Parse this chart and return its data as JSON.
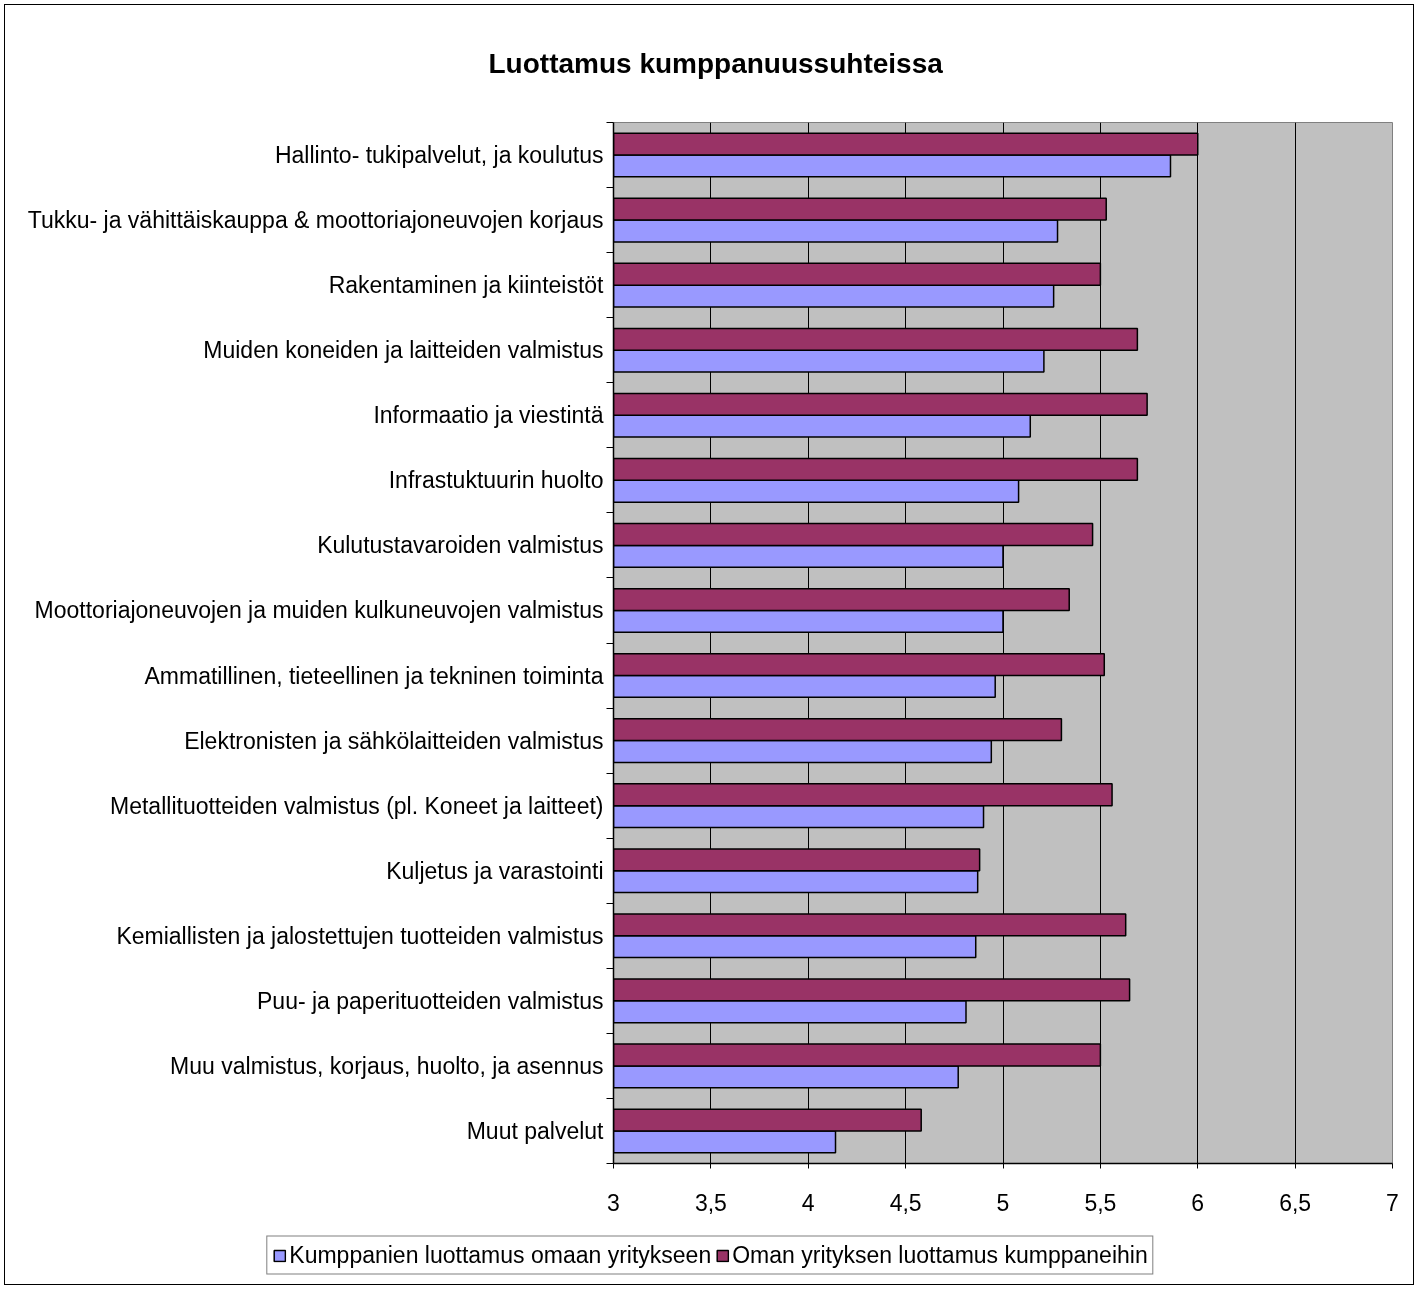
{
  "chart_data": {
    "type": "bar",
    "orientation": "horizontal",
    "title": "Luottamus kumppanuussuhteissa",
    "categories": [
      "Hallinto- tukipalvelut, ja koulutus",
      "Tukku- ja vähittäiskauppa & moottoriajoneuvojen korjaus",
      "Rakentaminen ja kiinteistöt",
      "Muiden koneiden ja laitteiden valmistus",
      "Informaatio ja viestintä",
      "Infrastuktuurin huolto",
      "Kulutustavaroiden valmistus",
      "Moottoriajoneuvojen ja muiden kulkuneuvojen valmistus",
      "Ammatillinen, tieteellinen ja tekninen toiminta",
      "Elektronisten ja sähkölaitteiden valmistus",
      "Metallituotteiden valmistus (pl. Koneet ja laitteet)",
      "Kuljetus ja varastointi",
      "Kemiallisten ja jalostettujen tuotteiden valmistus",
      "Puu- ja paperituotteiden valmistus",
      "Muu valmistus, korjaus, huolto, ja asennus",
      "Muut palvelut"
    ],
    "series": [
      {
        "name": "Kumppanien luottamus omaan yritykseen",
        "color": "#9999ff",
        "values": [
          5.86,
          5.28,
          5.26,
          5.21,
          5.14,
          5.08,
          5.0,
          5.0,
          4.96,
          4.94,
          4.9,
          4.87,
          4.86,
          4.81,
          4.77,
          4.14
        ]
      },
      {
        "name": "Oman yrityksen luottamus kumppaneihin",
        "color": "#993366",
        "values": [
          6.0,
          5.53,
          5.5,
          5.69,
          5.74,
          5.69,
          5.46,
          5.34,
          5.52,
          5.3,
          5.56,
          4.88,
          5.63,
          5.65,
          5.5,
          4.58
        ]
      }
    ],
    "xlim": [
      3,
      7
    ],
    "xticks": [
      3,
      {
        "value": 3.5,
        "label": "3,5"
      },
      4,
      {
        "value": 4.5,
        "label": "4,5"
      },
      5,
      {
        "value": 5.5,
        "label": "5,5"
      },
      6,
      {
        "value": 6.5,
        "label": "6,5"
      },
      7
    ],
    "grid": "x",
    "legend": "bottom"
  }
}
